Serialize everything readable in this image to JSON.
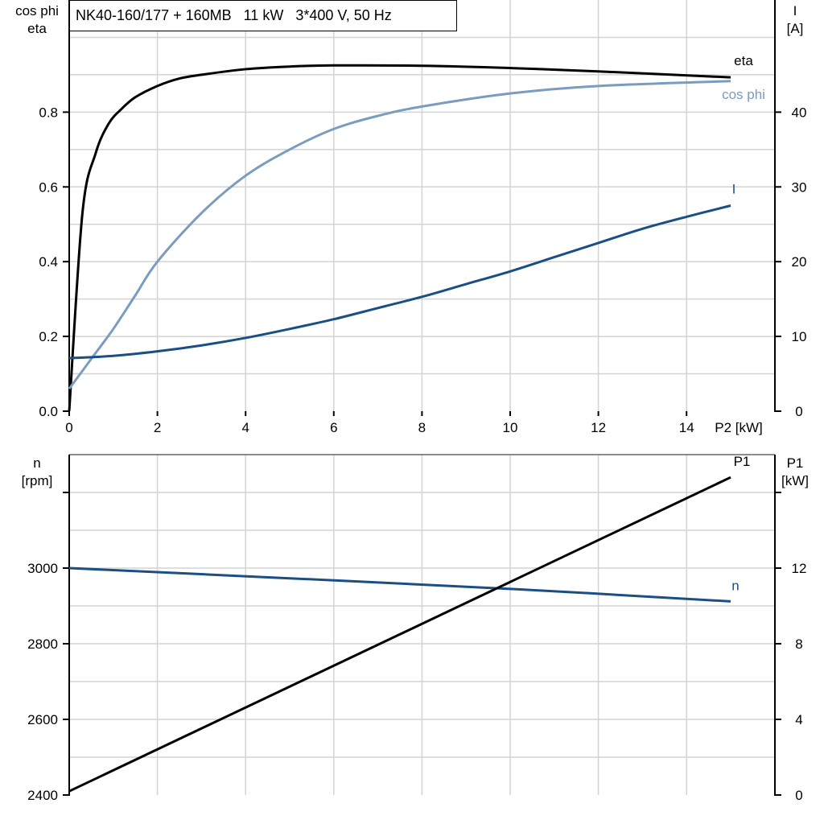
{
  "chart_data": [
    {
      "type": "line",
      "title": "NK40-160/177 + 160MB   11 kW   3*400 V, 50 Hz",
      "xlabel": "P2 [kW]",
      "ylabel_left": [
        "cos phi",
        "eta"
      ],
      "ylabel_right": [
        "I",
        "[A]"
      ],
      "xlim": [
        0,
        16
      ],
      "ylim_left": [
        0,
        1.1
      ],
      "ylim_right": [
        0,
        55
      ],
      "x_ticks": [
        "0",
        "2",
        "4",
        "6",
        "8",
        "10",
        "12",
        "14"
      ],
      "y_left_ticks": [
        "0.0",
        "0.2",
        "0.4",
        "0.6",
        "0.8"
      ],
      "y_right_ticks": [
        "0",
        "10",
        "20",
        "30",
        "40"
      ],
      "grid": true,
      "series": [
        {
          "name": "eta",
          "axis": "left",
          "color": "#000000",
          "x": [
            0,
            0.3,
            0.6,
            0.9,
            1.2,
            1.5,
            2,
            2.5,
            3,
            4,
            5,
            6,
            8,
            10,
            12,
            15
          ],
          "y": [
            0,
            0.53,
            0.69,
            0.77,
            0.81,
            0.84,
            0.87,
            0.89,
            0.9,
            0.915,
            0.922,
            0.925,
            0.924,
            0.918,
            0.909,
            0.893
          ]
        },
        {
          "name": "cos phi",
          "axis": "left",
          "color": "#7a9cbf",
          "x": [
            0,
            0.5,
            1,
            1.5,
            2,
            3,
            4,
            5,
            6,
            7,
            8,
            10,
            12,
            15
          ],
          "y": [
            0.06,
            0.14,
            0.22,
            0.31,
            0.4,
            0.53,
            0.63,
            0.7,
            0.755,
            0.79,
            0.815,
            0.85,
            0.87,
            0.883
          ]
        },
        {
          "name": "I",
          "axis": "right",
          "color": "#1a4f86",
          "x": [
            0,
            1,
            2,
            3,
            4,
            5,
            6,
            7,
            8,
            9,
            10,
            11,
            12,
            13,
            14,
            15
          ],
          "y": [
            7.1,
            7.4,
            8.0,
            8.8,
            9.8,
            11.0,
            12.3,
            13.8,
            15.3,
            17.0,
            18.7,
            20.6,
            22.5,
            24.4,
            26.0,
            27.5
          ]
        }
      ]
    },
    {
      "type": "line",
      "ylabel_left": [
        "n",
        "[rpm]"
      ],
      "ylabel_right": [
        "P1",
        "[kW]"
      ],
      "xlim": [
        0,
        16
      ],
      "ylim_left": [
        2400,
        3300
      ],
      "ylim_right": [
        0,
        18
      ],
      "y_left_ticks": [
        "2400",
        "2600",
        "2800",
        "3000",
        ""
      ],
      "y_right_ticks": [
        "0",
        "4",
        "8",
        "12",
        ""
      ],
      "grid": true,
      "series": [
        {
          "name": "n",
          "axis": "left",
          "color": "#1a4f86",
          "x": [
            0,
            5,
            10,
            15
          ],
          "y": [
            3000,
            2973,
            2945,
            2912
          ]
        },
        {
          "name": "P1",
          "axis": "right",
          "color": "#000000",
          "x": [
            0,
            15
          ],
          "y": [
            0.2,
            16.8
          ]
        }
      ]
    }
  ]
}
